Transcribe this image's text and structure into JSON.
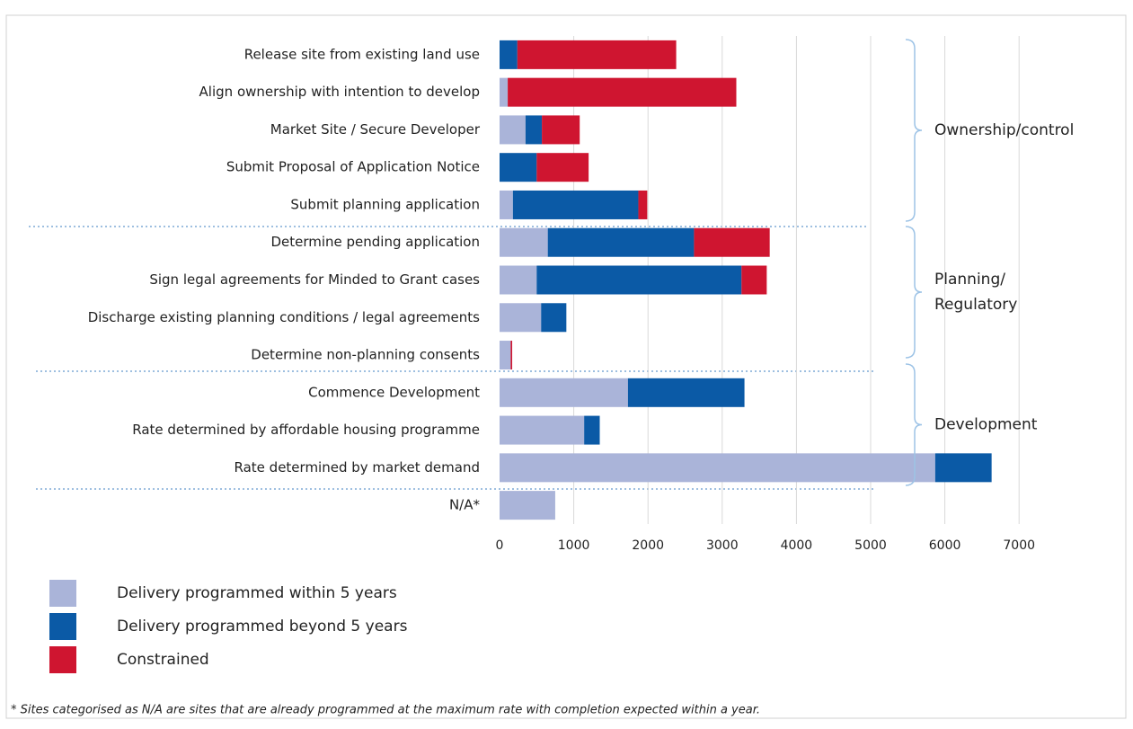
{
  "chart_data": {
    "type": "bar",
    "orientation": "horizontal",
    "stacked": true,
    "categories": [
      "Release site from existing land use",
      "Align ownership with intention to develop",
      "Market Site / Secure Developer",
      "Submit Proposal of Application Notice",
      "Submit planning application",
      "Determine pending application",
      "Sign legal agreements for Minded to Grant cases",
      "Discharge existing planning conditions / legal agreements",
      "Determine non-planning consents",
      "Commence Development",
      "Rate determined by affordable housing programme",
      "Rate determined by market demand",
      "N/A*"
    ],
    "series": [
      {
        "name": "Delivery programmed within 5 years",
        "color": "#aab4d9",
        "values": [
          null,
          110,
          350,
          null,
          180,
          650,
          500,
          560,
          150,
          1730,
          1140,
          5870,
          750
        ]
      },
      {
        "name": "Delivery programmed beyond 5 years",
        "color": "#0b5aa6",
        "values": [
          240,
          null,
          220,
          500,
          1690,
          1970,
          2760,
          340,
          null,
          1570,
          210,
          760,
          null
        ]
      },
      {
        "name": "Constrained",
        "color": "#cf1530",
        "values": [
          2140,
          3080,
          510,
          700,
          120,
          1020,
          340,
          null,
          20,
          null,
          null,
          null,
          null
        ]
      }
    ],
    "xlim": [
      0,
      7500
    ],
    "xticks": [
      0,
      1000,
      2000,
      3000,
      4000,
      5000,
      6000,
      7000
    ],
    "grid": true,
    "groups": [
      {
        "lines": [
          "Ownership/control"
        ]
      },
      {
        "lines": [
          "Planning/",
          "Regulatory"
        ]
      },
      {
        "lines": [
          "Development"
        ]
      }
    ],
    "footnote": "* Sites categorised as N/A are sites that are already programmed at the maximum rate with completion expected within a year."
  }
}
